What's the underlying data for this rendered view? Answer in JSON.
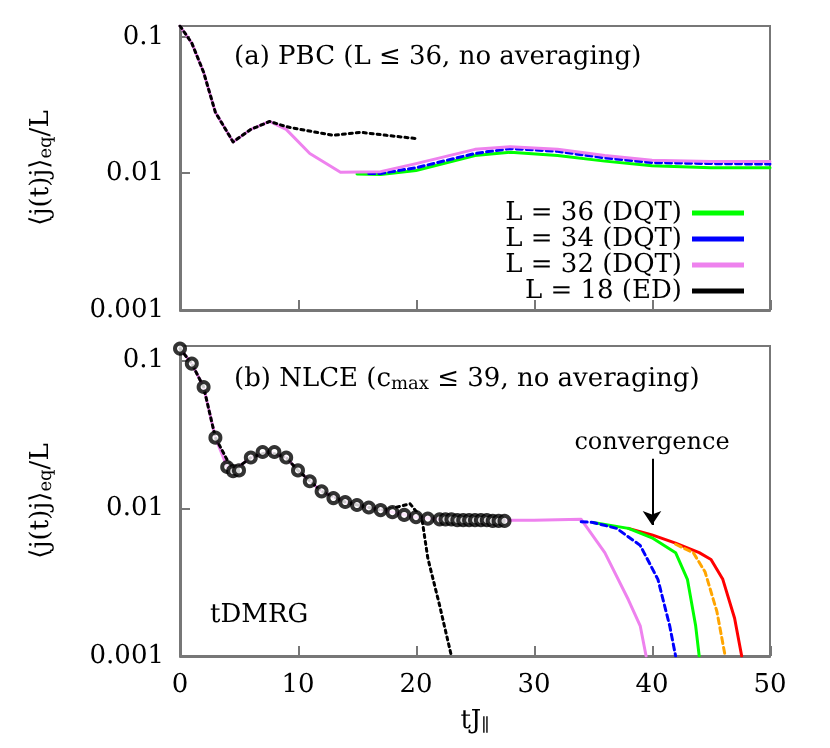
{
  "chart_data": [
    {
      "type": "line",
      "title": "(a) PBC (L ≤ 36, no averaging)",
      "ylabel": "⟨j(t)j⟩$_{eq}$/L",
      "log": "y",
      "xlim": [
        0,
        50
      ],
      "xticks": [
        0,
        10,
        20,
        30,
        40,
        50
      ],
      "ylim": [
        0.001,
        0.12
      ],
      "yticks": [
        0.001,
        0.01,
        0.1
      ],
      "tick_labels": "y",
      "legend": "bottom right",
      "marker": "none",
      "grid": false,
      "series": [
        {
          "name": "L = 36 (DQT)",
          "color": "#00ff00",
          "line_style": "solid",
          "x": [
            15,
            17,
            20,
            25,
            28,
            32,
            36,
            40,
            45,
            50
          ],
          "values": [
            0.0099,
            0.0098,
            0.0105,
            0.0135,
            0.0143,
            0.0135,
            0.0123,
            0.0114,
            0.011,
            0.011
          ]
        },
        {
          "name": "L = 34 (DQT)",
          "color": "#0000ff",
          "line_style": "dashed",
          "x": [
            16,
            17,
            20,
            25,
            28,
            32,
            36,
            40,
            45,
            50
          ],
          "values": [
            0.01,
            0.01,
            0.011,
            0.014,
            0.0152,
            0.0145,
            0.013,
            0.012,
            0.0118,
            0.0117
          ]
        },
        {
          "name": "L = 32 (DQT)",
          "color": "#ee82ee",
          "line_style": "solid",
          "x": [
            0,
            1,
            2,
            3,
            4.5,
            6,
            7.6,
            9,
            11,
            13.6,
            17,
            20,
            25,
            28,
            32,
            36,
            40,
            45,
            50
          ],
          "values": [
            0.12,
            0.09,
            0.055,
            0.028,
            0.017,
            0.021,
            0.024,
            0.021,
            0.014,
            0.0102,
            0.0103,
            0.0118,
            0.015,
            0.0157,
            0.015,
            0.0135,
            0.0125,
            0.0122,
            0.0122
          ]
        },
        {
          "name": "L = 18 (ED)",
          "color": "#000000",
          "line_style": "dotted",
          "x": [
            0,
            1,
            2,
            3,
            4.5,
            6,
            7.6,
            9,
            10.2,
            13,
            15.3,
            17.5,
            20
          ],
          "values": [
            0.12,
            0.09,
            0.055,
            0.028,
            0.017,
            0.021,
            0.024,
            0.022,
            0.021,
            0.019,
            0.02,
            0.019,
            0.018
          ]
        }
      ]
    },
    {
      "type": "line",
      "title": "(b) NLCE (c$_{max}$ ≤ 39, no averaging)",
      "xlabel": "tJ$_{∥}$",
      "ylabel": "⟨j(t)j⟩$_{eq}$/L",
      "log": "y",
      "xlim": [
        0,
        50
      ],
      "xticks": [
        0,
        10,
        20,
        30,
        40,
        50
      ],
      "ylim": [
        0.001,
        0.125
      ],
      "yticks": [
        0.001,
        0.01,
        0.1
      ],
      "legend": "bottom left",
      "grid": false,
      "annotations": [
        {
          "text": "convergence",
          "x": 40,
          "y": 0.0077
        }
      ],
      "series": [
        {
          "color": "#ee82ee",
          "line_style": "solid",
          "marker": "none",
          "x": [
            0,
            1,
            2,
            3,
            4,
            4.5,
            6,
            7.5,
            9,
            10,
            12,
            14,
            16,
            18,
            20,
            22,
            25,
            28,
            30,
            34,
            36,
            38,
            39,
            39.5
          ],
          "values": [
            0.12,
            0.095,
            0.066,
            0.03,
            0.019,
            0.0178,
            0.022,
            0.024,
            0.022,
            0.018,
            0.013,
            0.011,
            0.0101,
            0.0094,
            0.0087,
            0.0084,
            0.0083,
            0.0083,
            0.0083,
            0.0084,
            0.005,
            0.0024,
            0.0016,
            0.001
          ]
        },
        {
          "color": "#ff0000",
          "line_style": "solid",
          "marker": "none",
          "x": [
            38,
            40,
            42,
            44,
            45,
            46,
            47,
            47.6
          ],
          "values": [
            0.0073,
            0.0066,
            0.0058,
            0.005,
            0.0045,
            0.0033,
            0.0018,
            0.001
          ]
        },
        {
          "color": "#ffa500",
          "line_style": "dashed",
          "marker": "none",
          "x": [
            42,
            43.5,
            44.5,
            45.5,
            46.2
          ],
          "values": [
            0.0057,
            0.005,
            0.0037,
            0.002,
            0.001
          ]
        },
        {
          "color": "#00ff00",
          "line_style": "solid",
          "marker": "none",
          "x": [
            35,
            38,
            40,
            42,
            43,
            43.7,
            44
          ],
          "values": [
            0.008,
            0.0073,
            0.0063,
            0.005,
            0.0033,
            0.0016,
            0.001
          ]
        },
        {
          "color": "#0000ff",
          "line_style": "dashed",
          "marker": "none",
          "x": [
            34,
            35,
            37,
            39,
            40.5,
            41.5,
            42
          ],
          "values": [
            0.0081,
            0.008,
            0.0073,
            0.0056,
            0.0033,
            0.0016,
            0.001
          ]
        },
        {
          "color": "#000000",
          "line_style": "dotted",
          "marker": "none",
          "x": [
            0,
            1,
            2,
            3,
            4.5,
            6,
            7.5,
            9,
            10,
            12,
            14,
            16,
            17,
            18,
            19.5,
            20.5,
            21,
            22,
            23
          ],
          "values": [
            0.12,
            0.095,
            0.066,
            0.03,
            0.0178,
            0.022,
            0.024,
            0.022,
            0.018,
            0.013,
            0.011,
            0.0101,
            0.0097,
            0.01,
            0.0107,
            0.0085,
            0.0046,
            0.0022,
            0.001
          ]
        },
        {
          "name": "tDMRG",
          "type": "scatter",
          "color": "#000000",
          "marker": "circle",
          "x": [
            0,
            1,
            2,
            3,
            4,
            4.5,
            5,
            6,
            7,
            8,
            9,
            10,
            11,
            12,
            13,
            14,
            15,
            16,
            17,
            18,
            19,
            20,
            21,
            22,
            22.5,
            23,
            23.5,
            24,
            24.5,
            25,
            25.5,
            26,
            26.5,
            27,
            27.5
          ],
          "values": [
            0.12,
            0.095,
            0.066,
            0.03,
            0.019,
            0.0178,
            0.018,
            0.022,
            0.024,
            0.024,
            0.022,
            0.018,
            0.0152,
            0.013,
            0.0117,
            0.011,
            0.0105,
            0.0101,
            0.0097,
            0.0094,
            0.009,
            0.0087,
            0.0085,
            0.0084,
            0.0084,
            0.0084,
            0.0083,
            0.0083,
            0.0083,
            0.0083,
            0.0083,
            0.0083,
            0.0082,
            0.0082,
            0.0082
          ]
        }
      ]
    }
  ]
}
